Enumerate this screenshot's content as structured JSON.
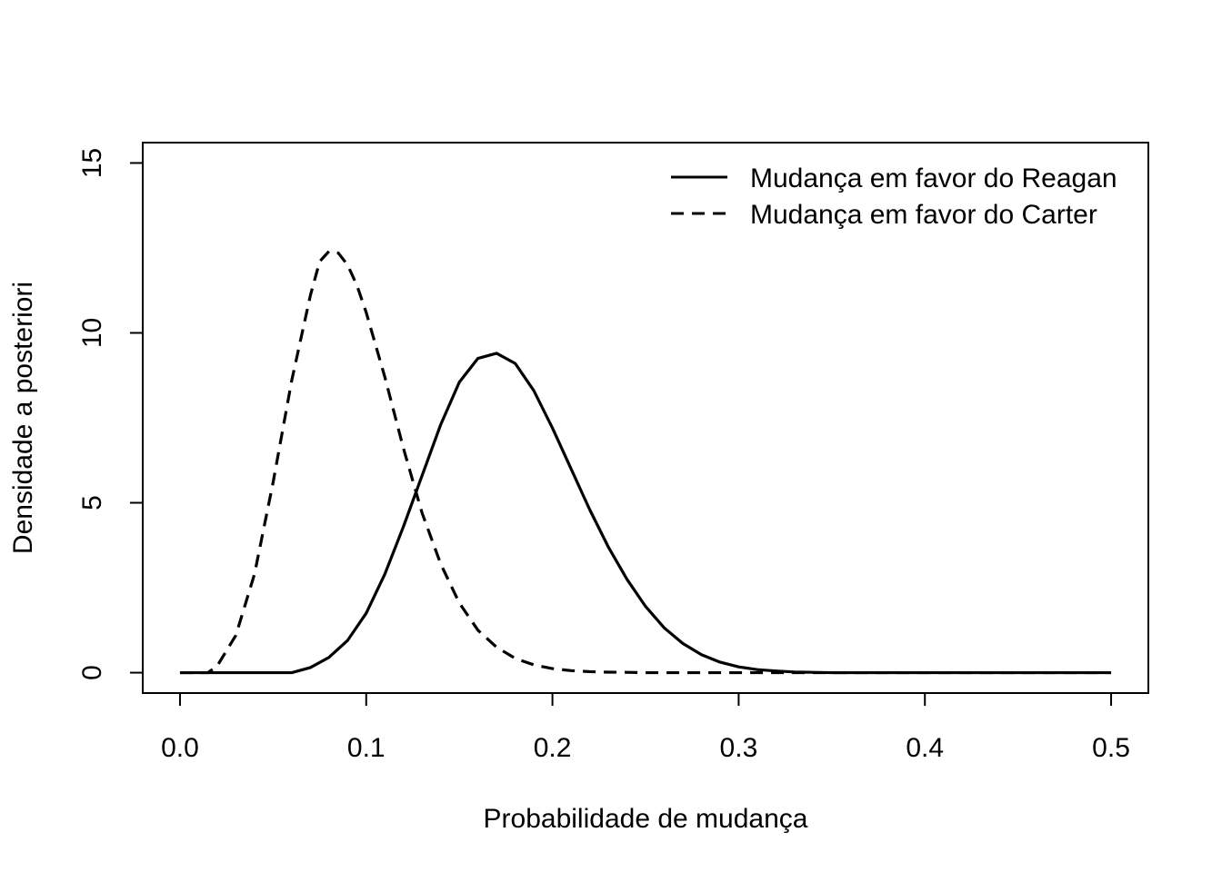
{
  "chart_data": {
    "type": "line",
    "title": "",
    "xlabel": "Probabilidade de mudança",
    "ylabel": "Densidade a posteriori",
    "xlim": [
      -0.02,
      0.52
    ],
    "ylim": [
      -0.6,
      15.6
    ],
    "x_ticks": [
      0.0,
      0.1,
      0.2,
      0.3,
      0.4,
      0.5
    ],
    "x_tick_labels": [
      "0.0",
      "0.1",
      "0.2",
      "0.3",
      "0.4",
      "0.5"
    ],
    "y_ticks": [
      0,
      5,
      10,
      15
    ],
    "y_tick_labels": [
      "0",
      "5",
      "10",
      "15"
    ],
    "grid": false,
    "legend_position": "top-right",
    "series": [
      {
        "name": "Mudança em favor do Reagan",
        "line_style": "solid",
        "color": "#000000",
        "x": [
          0.0,
          0.01,
          0.02,
          0.03,
          0.04,
          0.05,
          0.06,
          0.07,
          0.08,
          0.09,
          0.1,
          0.11,
          0.12,
          0.13,
          0.14,
          0.15,
          0.16,
          0.17,
          0.18,
          0.19,
          0.2,
          0.21,
          0.22,
          0.23,
          0.24,
          0.25,
          0.26,
          0.27,
          0.28,
          0.29,
          0.3,
          0.31,
          0.32,
          0.33,
          0.34,
          0.35,
          0.4,
          0.45,
          0.5
        ],
        "y": [
          0,
          0,
          0,
          0,
          0,
          0,
          0,
          0.15,
          0.45,
          0.95,
          1.75,
          2.9,
          4.3,
          5.8,
          7.3,
          8.55,
          9.25,
          9.4,
          9.1,
          8.3,
          7.2,
          6.0,
          4.8,
          3.7,
          2.75,
          1.95,
          1.32,
          0.86,
          0.53,
          0.31,
          0.17,
          0.09,
          0.05,
          0.02,
          0.01,
          0,
          0,
          0,
          0
        ]
      },
      {
        "name": "Mudança em favor do Carter",
        "line_style": "dashed",
        "color": "#000000",
        "x": [
          0.0,
          0.01,
          0.015,
          0.02,
          0.03,
          0.04,
          0.05,
          0.06,
          0.07,
          0.075,
          0.08,
          0.085,
          0.09,
          0.095,
          0.1,
          0.11,
          0.12,
          0.13,
          0.14,
          0.15,
          0.16,
          0.17,
          0.18,
          0.19,
          0.2,
          0.21,
          0.22,
          0.23,
          0.24,
          0.25,
          0.3,
          0.35,
          0.4,
          0.45,
          0.5
        ],
        "y": [
          0,
          0,
          0,
          0.2,
          1.1,
          2.9,
          5.6,
          8.6,
          11.1,
          12.1,
          12.4,
          12.35,
          12.0,
          11.4,
          10.6,
          8.7,
          6.6,
          4.7,
          3.2,
          2.05,
          1.25,
          0.75,
          0.42,
          0.23,
          0.12,
          0.06,
          0.03,
          0.015,
          0.01,
          0,
          0,
          0,
          0,
          0,
          0
        ]
      }
    ]
  }
}
